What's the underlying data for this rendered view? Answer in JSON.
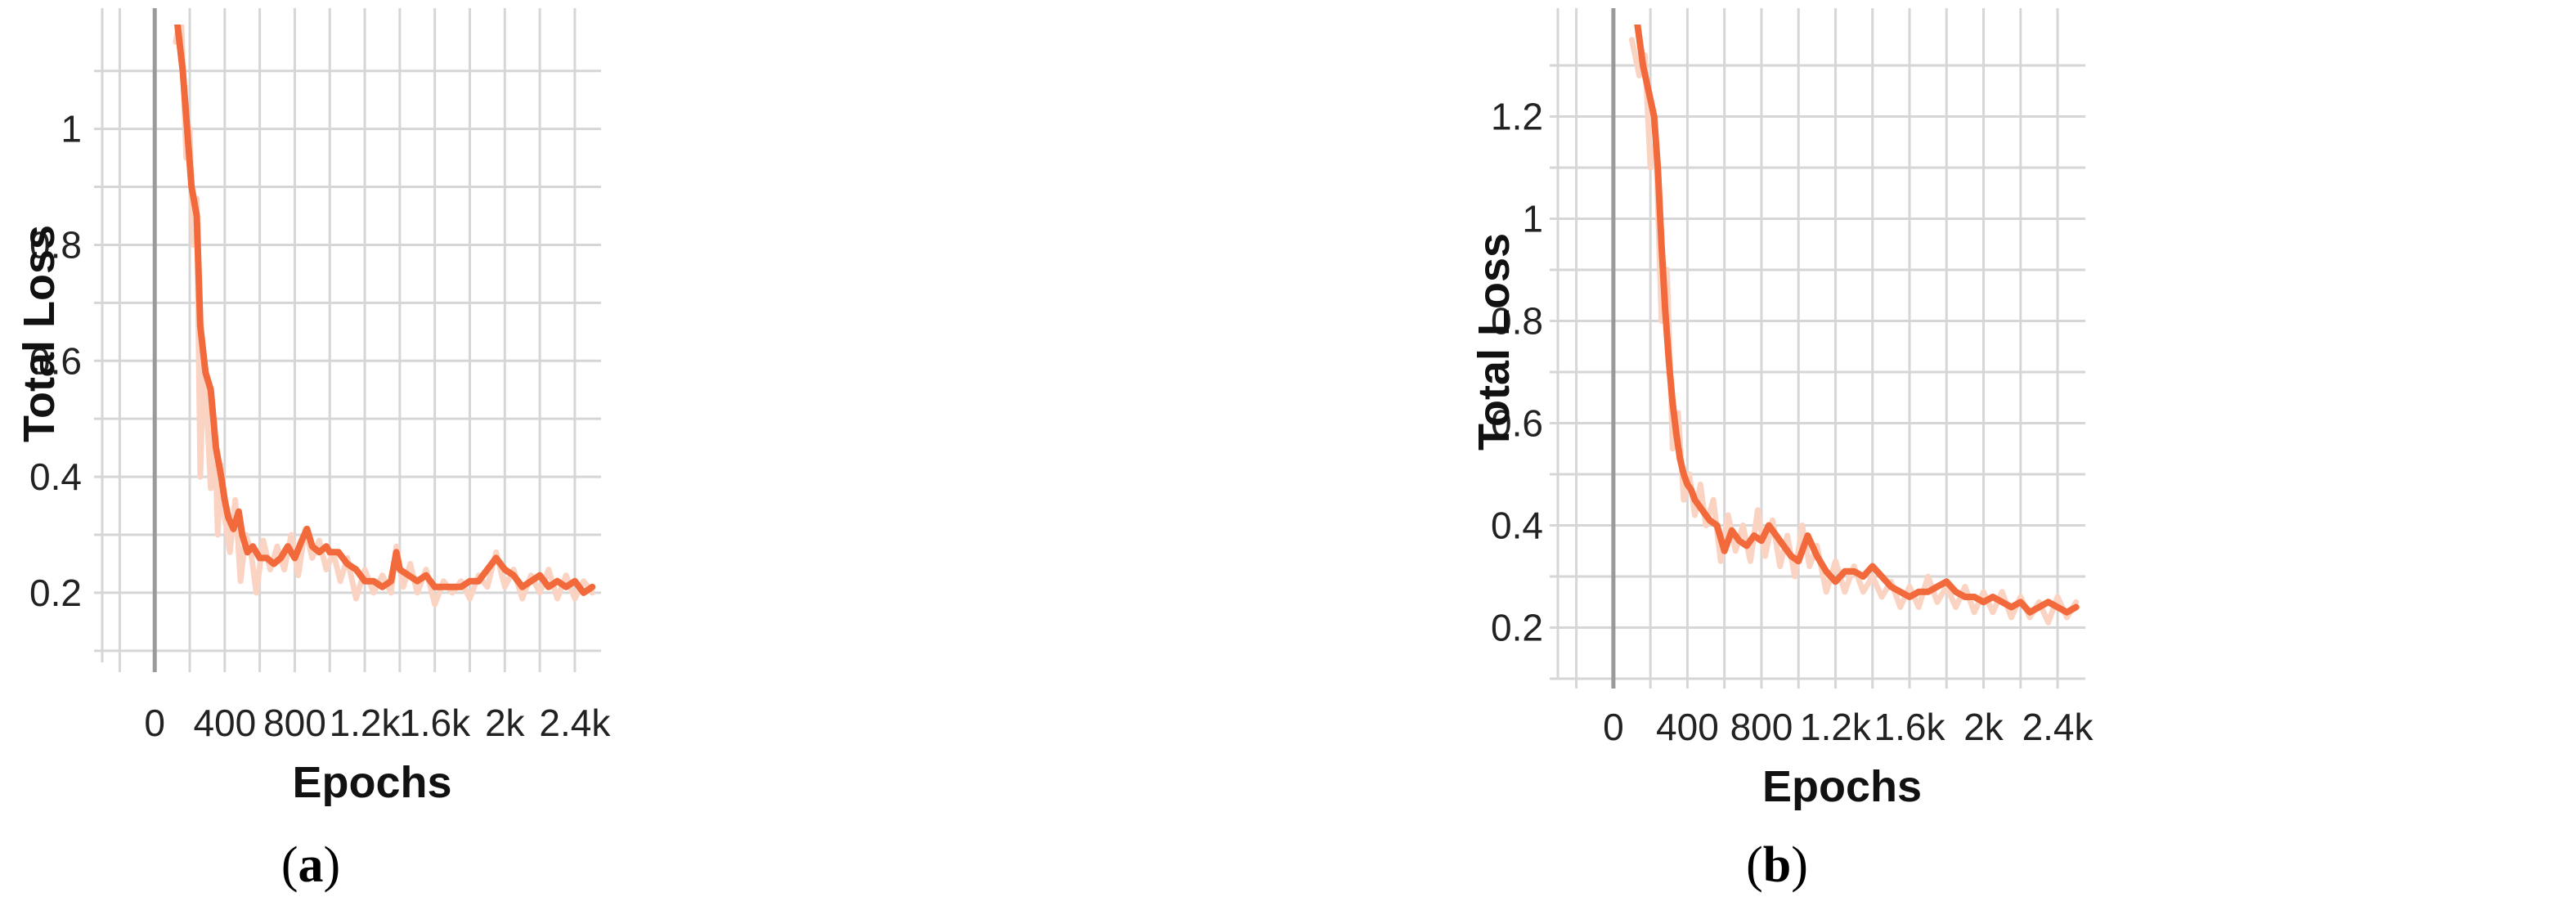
{
  "colors": {
    "line": "#f26a3c",
    "line_raw": "#fbd3c3",
    "grid": "#d6d6d6",
    "zero_line": "#9a9a9a"
  },
  "chart_data": [
    {
      "type": "line",
      "caption_open": "(",
      "caption_letter": "a",
      "caption_close": ")",
      "xlabel": "Epochs",
      "ylabel": "Total Loss",
      "xlim": [
        -300,
        2550
      ],
      "ylim": [
        0.08,
        1.18
      ],
      "xticks": [
        0,
        400,
        800,
        1200,
        1600,
        2000,
        2400
      ],
      "xtick_labels": [
        "0",
        "400",
        "800",
        "1.2k",
        "1.6k",
        "2k",
        "2.4k"
      ],
      "yticks": [
        0.2,
        0.4,
        0.6,
        0.8,
        1.0
      ],
      "ytick_labels": [
        "0.2",
        "0.4",
        "0.6",
        "0.8",
        "1"
      ],
      "grid": true,
      "series": [
        {
          "style": "smoothed",
          "x": [
            130,
            160,
            190,
            210,
            240,
            260,
            290,
            320,
            350,
            380,
            400,
            420,
            450,
            480,
            500,
            530,
            560,
            600,
            640,
            680,
            720,
            760,
            800,
            840,
            870,
            900,
            940,
            980,
            1000,
            1050,
            1100,
            1150,
            1200,
            1250,
            1300,
            1350,
            1380,
            1400,
            1450,
            1500,
            1550,
            1600,
            1650,
            1700,
            1750,
            1800,
            1850,
            1900,
            1950,
            2000,
            2050,
            2100,
            2150,
            2200,
            2250,
            2300,
            2350,
            2400,
            2450,
            2500
          ],
          "y": [
            1.18,
            1.1,
            0.98,
            0.9,
            0.85,
            0.66,
            0.58,
            0.55,
            0.45,
            0.4,
            0.36,
            0.33,
            0.31,
            0.34,
            0.3,
            0.27,
            0.28,
            0.26,
            0.26,
            0.25,
            0.26,
            0.28,
            0.26,
            0.29,
            0.31,
            0.28,
            0.27,
            0.28,
            0.27,
            0.27,
            0.25,
            0.24,
            0.22,
            0.22,
            0.21,
            0.22,
            0.27,
            0.24,
            0.23,
            0.22,
            0.23,
            0.21,
            0.21,
            0.21,
            0.21,
            0.22,
            0.22,
            0.24,
            0.26,
            0.24,
            0.23,
            0.21,
            0.22,
            0.23,
            0.21,
            0.22,
            0.21,
            0.22,
            0.2,
            0.21
          ]
        },
        {
          "style": "raw",
          "x": [
            120,
            150,
            180,
            200,
            220,
            240,
            260,
            280,
            300,
            320,
            340,
            360,
            380,
            400,
            430,
            460,
            490,
            520,
            550,
            580,
            620,
            660,
            700,
            740,
            780,
            820,
            860,
            900,
            940,
            980,
            1020,
            1060,
            1100,
            1150,
            1200,
            1250,
            1300,
            1350,
            1380,
            1420,
            1460,
            1500,
            1550,
            1600,
            1650,
            1700,
            1750,
            1800,
            1850,
            1900,
            1950,
            2000,
            2050,
            2100,
            2150,
            2200,
            2250,
            2300,
            2350,
            2400,
            2450,
            2500
          ],
          "y": [
            1.15,
            1.2,
            0.95,
            1.0,
            0.8,
            0.88,
            0.4,
            0.6,
            0.5,
            0.38,
            0.5,
            0.3,
            0.42,
            0.33,
            0.27,
            0.36,
            0.22,
            0.3,
            0.27,
            0.2,
            0.29,
            0.24,
            0.28,
            0.24,
            0.3,
            0.23,
            0.31,
            0.26,
            0.29,
            0.24,
            0.27,
            0.22,
            0.26,
            0.19,
            0.24,
            0.2,
            0.23,
            0.2,
            0.28,
            0.21,
            0.25,
            0.2,
            0.24,
            0.18,
            0.22,
            0.2,
            0.22,
            0.19,
            0.23,
            0.21,
            0.27,
            0.21,
            0.24,
            0.19,
            0.23,
            0.2,
            0.24,
            0.19,
            0.23,
            0.19,
            0.22,
            0.2
          ]
        }
      ]
    },
    {
      "type": "line",
      "caption_open": "(",
      "caption_letter": "b",
      "caption_close": ")",
      "xlabel": "Epochs",
      "ylabel": "Total Loss",
      "xlim": [
        -300,
        2550
      ],
      "ylim": [
        0.1,
        1.38
      ],
      "xticks": [
        0,
        400,
        800,
        1200,
        1600,
        2000,
        2400
      ],
      "xtick_labels": [
        "0",
        "400",
        "800",
        "1.2k",
        "1.6k",
        "2k",
        "2.4k"
      ],
      "yticks": [
        0.2,
        0.4,
        0.6,
        0.8,
        1.0,
        1.2
      ],
      "ytick_labels": [
        "0.2",
        "0.4",
        "0.6",
        "0.8",
        "1",
        "1.2"
      ],
      "grid": true,
      "series": [
        {
          "style": "smoothed",
          "x": [
            130,
            160,
            190,
            220,
            240,
            260,
            280,
            300,
            320,
            340,
            360,
            380,
            400,
            420,
            440,
            460,
            480,
            520,
            560,
            600,
            640,
            680,
            720,
            760,
            800,
            840,
            880,
            920,
            960,
            1000,
            1050,
            1100,
            1150,
            1200,
            1250,
            1300,
            1350,
            1400,
            1450,
            1500,
            1550,
            1600,
            1650,
            1700,
            1750,
            1800,
            1850,
            1900,
            1950,
            2000,
            2050,
            2100,
            2150,
            2200,
            2250,
            2300,
            2350,
            2400,
            2450,
            2500
          ],
          "y": [
            1.38,
            1.3,
            1.25,
            1.2,
            1.1,
            0.95,
            0.82,
            0.72,
            0.64,
            0.58,
            0.53,
            0.5,
            0.48,
            0.47,
            0.45,
            0.44,
            0.43,
            0.41,
            0.4,
            0.35,
            0.39,
            0.37,
            0.36,
            0.38,
            0.37,
            0.4,
            0.38,
            0.36,
            0.34,
            0.33,
            0.38,
            0.34,
            0.31,
            0.29,
            0.31,
            0.31,
            0.3,
            0.32,
            0.3,
            0.28,
            0.27,
            0.26,
            0.27,
            0.27,
            0.28,
            0.29,
            0.27,
            0.26,
            0.26,
            0.25,
            0.26,
            0.25,
            0.24,
            0.25,
            0.23,
            0.24,
            0.25,
            0.24,
            0.23,
            0.24
          ]
        },
        {
          "style": "raw",
          "x": [
            100,
            140,
            170,
            200,
            230,
            260,
            290,
            320,
            350,
            380,
            410,
            440,
            470,
            500,
            540,
            580,
            620,
            660,
            700,
            740,
            780,
            820,
            860,
            900,
            940,
            980,
            1020,
            1060,
            1100,
            1150,
            1200,
            1250,
            1300,
            1350,
            1400,
            1450,
            1500,
            1550,
            1600,
            1650,
            1700,
            1750,
            1800,
            1850,
            1900,
            1950,
            2000,
            2050,
            2100,
            2150,
            2200,
            2250,
            2300,
            2350,
            2400,
            2450,
            2500
          ],
          "y": [
            1.35,
            1.28,
            1.32,
            1.1,
            1.15,
            0.8,
            0.9,
            0.55,
            0.62,
            0.45,
            0.5,
            0.42,
            0.48,
            0.4,
            0.45,
            0.33,
            0.42,
            0.35,
            0.4,
            0.33,
            0.43,
            0.34,
            0.41,
            0.32,
            0.38,
            0.3,
            0.4,
            0.32,
            0.36,
            0.27,
            0.33,
            0.27,
            0.32,
            0.27,
            0.3,
            0.26,
            0.29,
            0.24,
            0.28,
            0.24,
            0.3,
            0.25,
            0.28,
            0.24,
            0.28,
            0.23,
            0.27,
            0.23,
            0.27,
            0.22,
            0.26,
            0.22,
            0.25,
            0.21,
            0.26,
            0.22,
            0.25
          ]
        }
      ]
    }
  ]
}
